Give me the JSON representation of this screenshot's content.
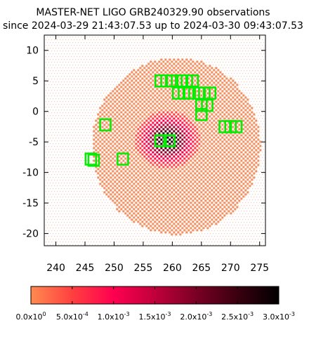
{
  "chart_data": {
    "type": "heatmap",
    "title_line1": "MASTER-NET LIGO GRB240329.90 observations",
    "title_line2": "since 2024-03-29 21:43:07.53 up to 2024-03-30 09:43:07.53",
    "xlabel": "",
    "ylabel": "",
    "xlim": [
      238,
      276
    ],
    "ylim": [
      -22,
      12.5
    ],
    "x_ticks": [
      240,
      245,
      250,
      255,
      260,
      265,
      270,
      275
    ],
    "y_ticks": [
      10,
      5,
      0,
      -5,
      -10,
      -15,
      -20
    ],
    "grid": false,
    "probability_region": {
      "center": [
        260.5,
        -5.5
      ],
      "radius_deg": 14.5,
      "base_value": 0.0002,
      "peak_value": 0.003,
      "peak_center": [
        259,
        -4.5
      ]
    },
    "observed_fields": [
      {
        "ra": 258.0,
        "dec": 5.0
      },
      {
        "ra": 259.0,
        "dec": 5.0
      },
      {
        "ra": 260.0,
        "dec": 5.0
      },
      {
        "ra": 261.5,
        "dec": 5.0
      },
      {
        "ra": 262.5,
        "dec": 5.0
      },
      {
        "ra": 263.5,
        "dec": 5.0
      },
      {
        "ra": 261.0,
        "dec": 3.0
      },
      {
        "ra": 262.0,
        "dec": 3.0
      },
      {
        "ra": 263.0,
        "dec": 3.0
      },
      {
        "ra": 264.5,
        "dec": 3.0
      },
      {
        "ra": 265.5,
        "dec": 3.0
      },
      {
        "ra": 266.5,
        "dec": 3.0
      },
      {
        "ra": 265.0,
        "dec": 1.0
      },
      {
        "ra": 266.0,
        "dec": 1.0
      },
      {
        "ra": 265.0,
        "dec": -0.5
      },
      {
        "ra": 269.0,
        "dec": -2.5
      },
      {
        "ra": 270.0,
        "dec": -2.5
      },
      {
        "ra": 271.0,
        "dec": -2.5
      },
      {
        "ra": 248.5,
        "dec": -2.2
      },
      {
        "ra": 258.0,
        "dec": -4.8
      },
      {
        "ra": 259.5,
        "dec": -4.8
      },
      {
        "ra": 246.0,
        "dec": -7.8
      },
      {
        "ra": 246.5,
        "dec": -8.0
      },
      {
        "ra": 251.5,
        "dec": -7.8
      }
    ],
    "colorbar": {
      "min": 0,
      "max": 0.003,
      "tick_labels": [
        {
          "mantissa": "0.0x10",
          "exp": "0"
        },
        {
          "mantissa": "5.0x10",
          "exp": "-4"
        },
        {
          "mantissa": "1.0x10",
          "exp": "-3"
        },
        {
          "mantissa": "1.5x10",
          "exp": "-3"
        },
        {
          "mantissa": "2.0x10",
          "exp": "-3"
        },
        {
          "mantissa": "2.5x10",
          "exp": "-3"
        },
        {
          "mantissa": "3.0x10",
          "exp": "-3"
        }
      ],
      "colors": [
        "#ff8a50",
        "#ff4040",
        "#ff0050",
        "#c0003a",
        "#7a0024",
        "#3a0010",
        "#000000"
      ]
    },
    "colors": {
      "field_box": "#00ee00",
      "region_fill": "#f09060",
      "region_faint": "#f8d0c0"
    }
  }
}
